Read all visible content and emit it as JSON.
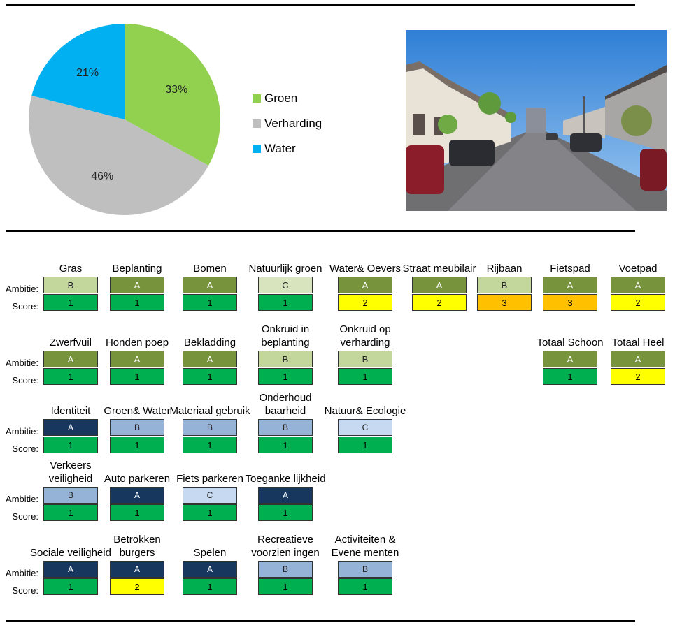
{
  "chart_data": {
    "type": "pie",
    "slices": [
      {
        "label": "Groen",
        "value": 33,
        "value_label": "33%",
        "color": "#92d050"
      },
      {
        "label": "Verharding",
        "value": 46,
        "value_label": "46%",
        "color": "#bfbfbf"
      },
      {
        "label": "Water",
        "value": 21,
        "value_label": "21%",
        "color": "#00b0f0"
      }
    ],
    "legend": "right"
  },
  "labels": {
    "ambitie": "Ambitie:",
    "score": "Score:"
  },
  "colors": {
    "A_green": "#77933c",
    "B_green": "#c3d69b",
    "C_green": "#d7e4bd",
    "A_blue": "#17375e",
    "B_blue": "#95b3d7",
    "C_blue": "#c6d9f1",
    "score_1": "#00b050",
    "score_2": "#ffff00",
    "score_3": "#ffc000"
  },
  "rows": [
    [
      {
        "title": "Gras",
        "ambitie": "B",
        "score": "1"
      },
      {
        "title": "Beplanting",
        "ambitie": "A",
        "score": "1"
      },
      {
        "title": "Bomen",
        "ambitie": "A",
        "score": "1"
      },
      {
        "title": "Natuurlijk groen",
        "ambitie": "C",
        "score": "1"
      },
      {
        "title": "Water& Oevers",
        "ambitie": "A",
        "score": "2"
      },
      {
        "title": "Straat meubilair",
        "ambitie": "A",
        "score": "2"
      },
      {
        "title": "Rijbaan",
        "ambitie": "B",
        "score": "3"
      },
      {
        "title": "Fietspad",
        "ambitie": "A",
        "score": "3"
      },
      {
        "title": "Voetpad",
        "ambitie": "A",
        "score": "2"
      }
    ],
    [
      {
        "title": "Zwerfvuil",
        "ambitie": "A",
        "score": "1"
      },
      {
        "title": "Honden poep",
        "ambitie": "A",
        "score": "1"
      },
      {
        "title": "Bekladding",
        "ambitie": "A",
        "score": "1"
      },
      {
        "title": "Onkruid in beplanting",
        "ambitie": "B",
        "score": "1"
      },
      {
        "title": "Onkruid op verharding",
        "ambitie": "B",
        "score": "1"
      },
      {
        "title": "Totaal Schoon",
        "ambitie": "A",
        "score": "1"
      },
      {
        "title": "Totaal Heel",
        "ambitie": "A",
        "score": "2"
      }
    ],
    [
      {
        "title": "Identiteit",
        "ambitie": "A",
        "score": "1"
      },
      {
        "title": "Groen& Water",
        "ambitie": "B",
        "score": "1"
      },
      {
        "title": "Materiaal gebruik",
        "ambitie": "B",
        "score": "1"
      },
      {
        "title": "Onderhoud baarheid",
        "ambitie": "B",
        "score": "1"
      },
      {
        "title": "Natuur& Ecologie",
        "ambitie": "C",
        "score": "1"
      }
    ],
    [
      {
        "title": "Verkeers veiligheid",
        "ambitie": "B",
        "score": "1"
      },
      {
        "title": "Auto parkeren",
        "ambitie": "A",
        "score": "1"
      },
      {
        "title": "Fiets parkeren",
        "ambitie": "C",
        "score": "1"
      },
      {
        "title": "Toeganke lijkheid",
        "ambitie": "A",
        "score": "1"
      }
    ],
    [
      {
        "title": "Sociale veiligheid",
        "ambitie": "A",
        "score": "1"
      },
      {
        "title": "Betrokken burgers",
        "ambitie": "A",
        "score": "2"
      },
      {
        "title": "Spelen",
        "ambitie": "A",
        "score": "1"
      },
      {
        "title": "Recreatieve voorzien ingen",
        "ambitie": "B",
        "score": "1"
      },
      {
        "title": "Activiteiten & Evene menten",
        "ambitie": "B",
        "score": "1"
      }
    ]
  ]
}
